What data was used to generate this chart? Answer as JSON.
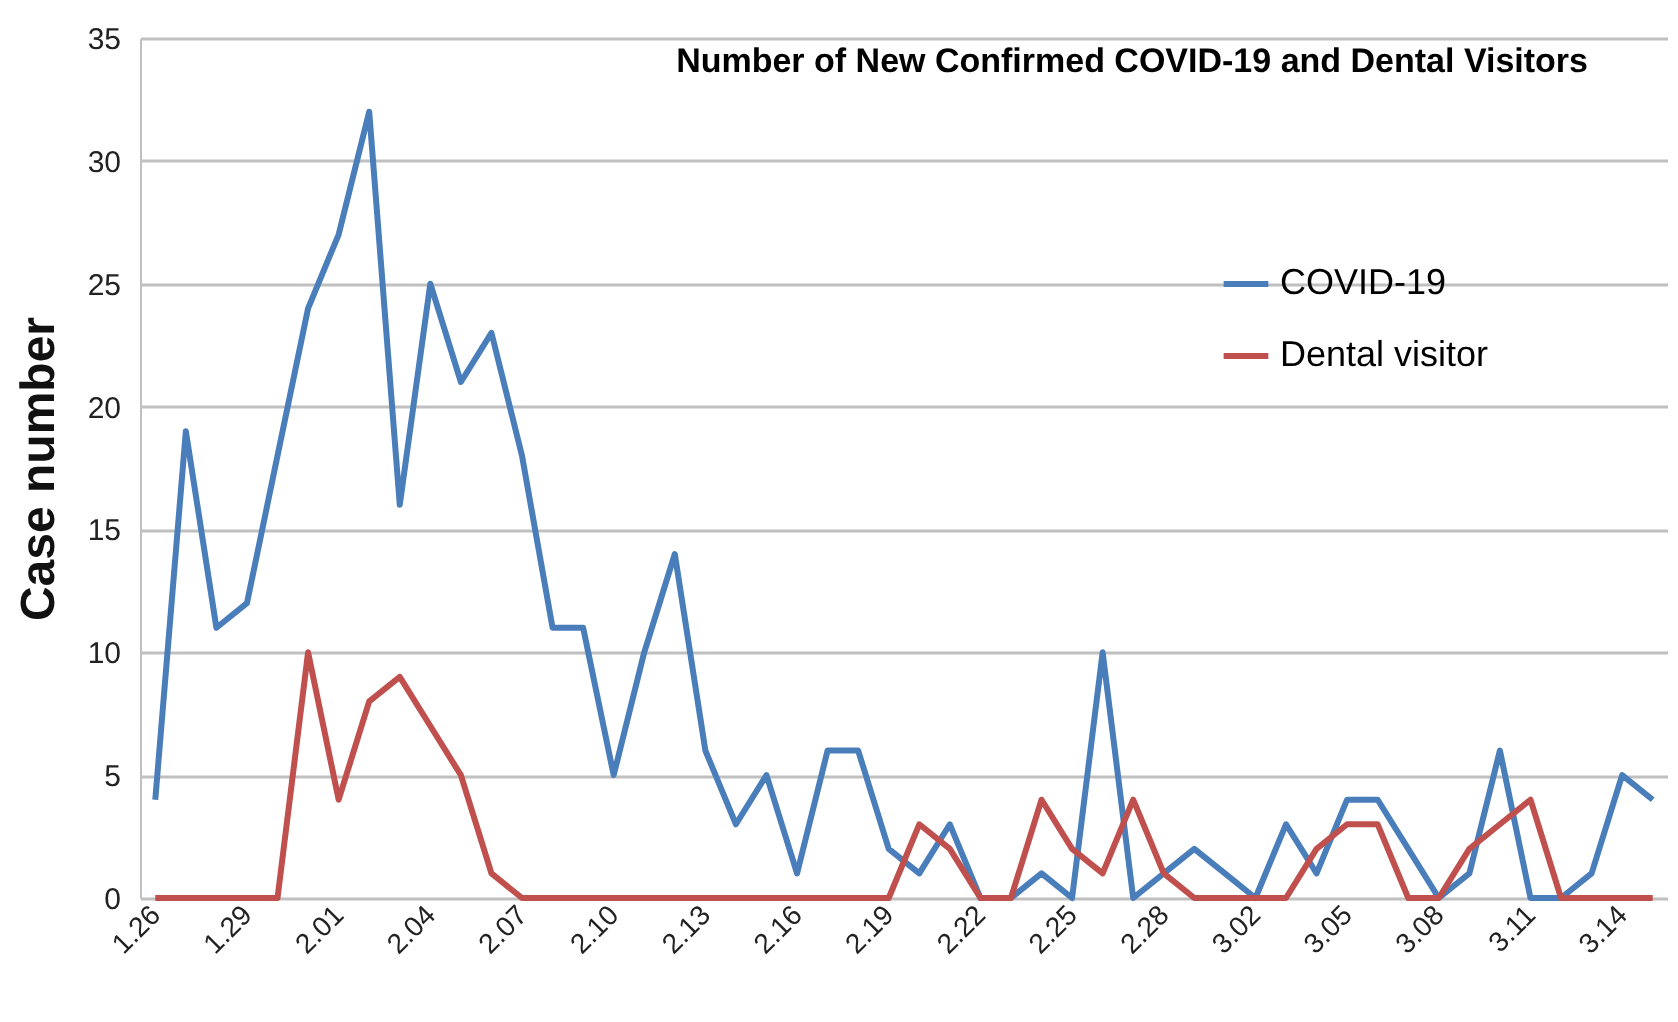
{
  "chart_data": {
    "type": "line",
    "title": "Number of New Confirmed COVID-19 and Dental Visitors",
    "ylabel": "Case number",
    "categories": [
      "1.26",
      null,
      null,
      "1.29",
      null,
      null,
      "2.01",
      null,
      null,
      "2.04",
      null,
      null,
      "2.07",
      null,
      null,
      "2.10",
      null,
      null,
      "2.13",
      null,
      null,
      "2.16",
      null,
      null,
      "2.19",
      null,
      null,
      "2.22",
      null,
      null,
      "2.25",
      null,
      null,
      "2.28",
      null,
      null,
      "3.02",
      null,
      null,
      "3.05",
      null,
      null,
      "3.08",
      null,
      null,
      "3.11",
      null,
      null,
      "3.14",
      null
    ],
    "series": [
      {
        "name": "COVID-19",
        "color": "#4a7ebb",
        "values": [
          4,
          19,
          11,
          12,
          18,
          24,
          27,
          32,
          16,
          25,
          21,
          23,
          18,
          11,
          11,
          5,
          10,
          14,
          6,
          3,
          5,
          1,
          6,
          6,
          2,
          1,
          3,
          0,
          0,
          1,
          0,
          10,
          0,
          1,
          2,
          1,
          0,
          3,
          1,
          4,
          4,
          2,
          0,
          1,
          6,
          0,
          0,
          1,
          5,
          4
        ]
      },
      {
        "name": "Dental visitor",
        "color": "#c0504d",
        "values": [
          0,
          0,
          0,
          0,
          0,
          10,
          4,
          8,
          9,
          7,
          5,
          1,
          0,
          0,
          0,
          0,
          0,
          0,
          0,
          0,
          0,
          0,
          0,
          0,
          0,
          3,
          2,
          0,
          0,
          4,
          2,
          1,
          4,
          1,
          0,
          0,
          0,
          0,
          2,
          3,
          3,
          0,
          0,
          2,
          3,
          4,
          0,
          0,
          0,
          0
        ]
      }
    ],
    "ylim": [
      0,
      35
    ],
    "yticks": [
      0,
      5,
      10,
      15,
      20,
      25,
      30,
      35
    ],
    "grid": "y",
    "legend": "top right",
    "marker": "none",
    "line_style": "solid"
  }
}
